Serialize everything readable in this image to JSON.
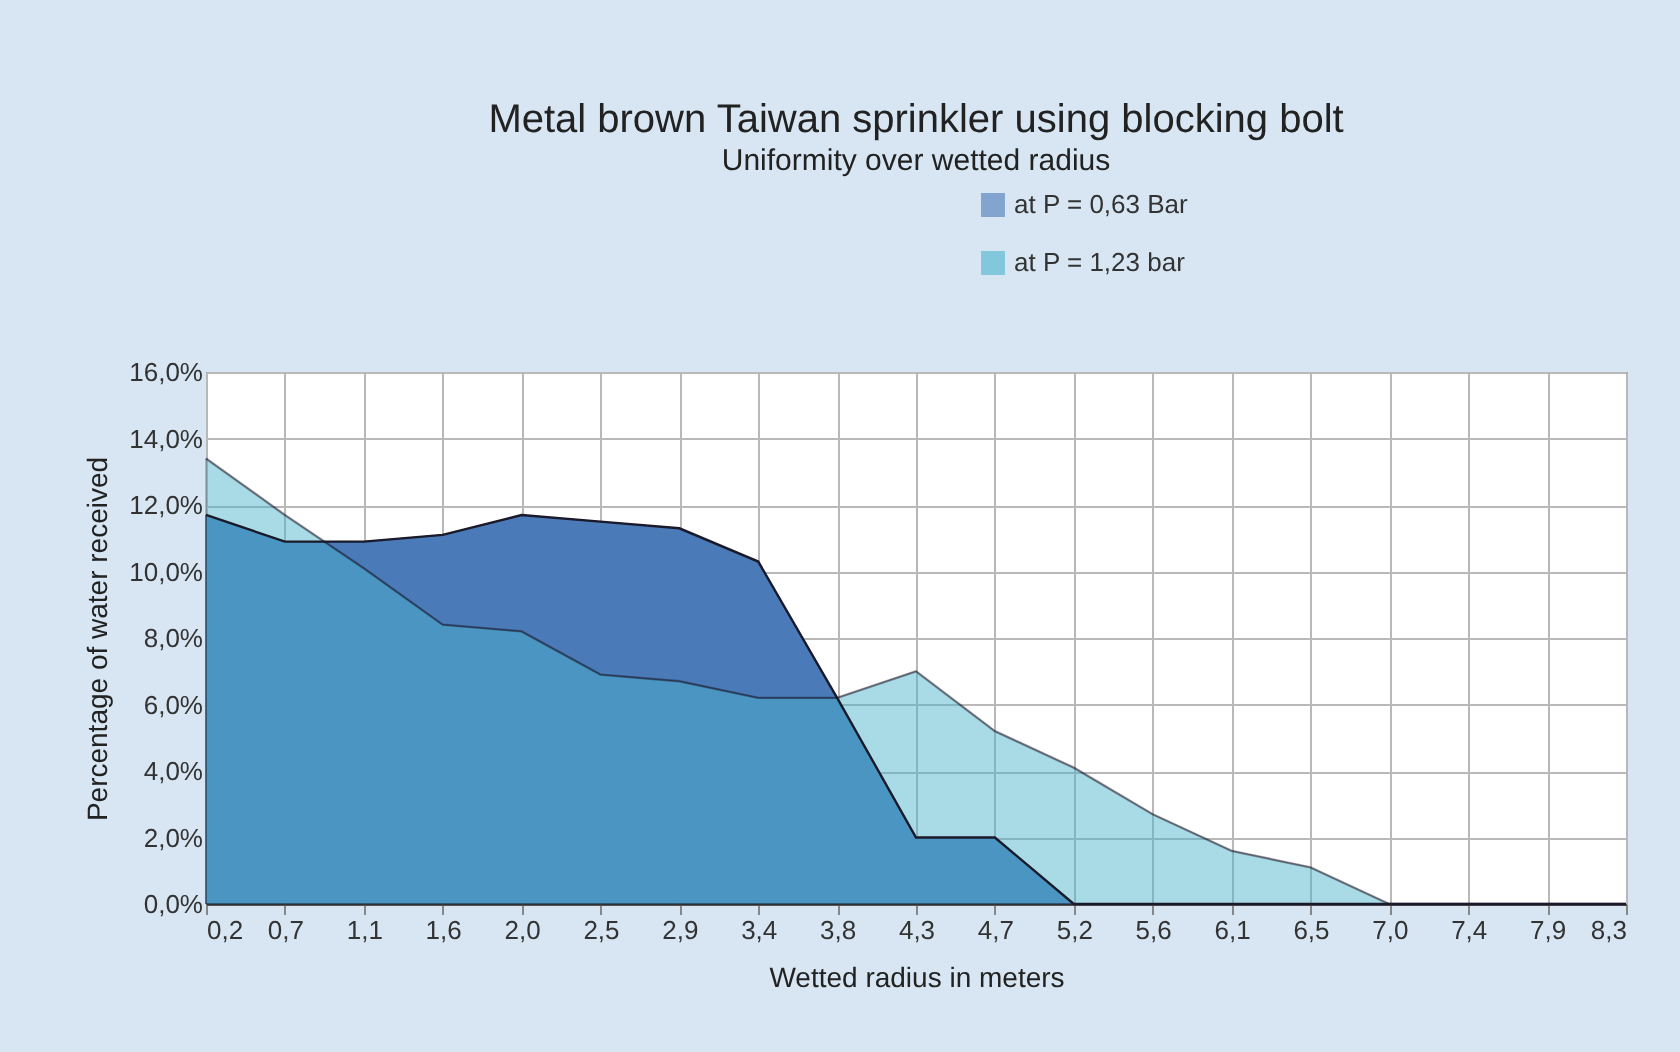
{
  "chart_data": {
    "type": "area",
    "title": "Metal brown Taiwan sprinkler using blocking bolt",
    "subtitle": "Uniformity over wetted radius",
    "xlabel": "Wetted radius in meters",
    "ylabel": "Percentage of water received",
    "categories": [
      "0,2",
      "0,7",
      "1,1",
      "1,6",
      "2,0",
      "2,5",
      "2,9",
      "3,4",
      "3,8",
      "4,3",
      "4,7",
      "5,2",
      "5,6",
      "6,1",
      "6,5",
      "7,0",
      "7,4",
      "7,9",
      "8,3"
    ],
    "series": [
      {
        "name": "at P = 0,63 Bar",
        "color": "#4a7ab8",
        "values": [
          11.7,
          10.9,
          10.9,
          11.1,
          11.7,
          11.5,
          11.3,
          10.3,
          6.2,
          2.0,
          2.0,
          0,
          0,
          0,
          0,
          0,
          0,
          0,
          0
        ]
      },
      {
        "name": "at P = 1,23 bar",
        "color": "#4ab4cd",
        "values": [
          13.4,
          11.7,
          10.1,
          8.4,
          8.2,
          6.9,
          6.7,
          6.2,
          6.2,
          7.0,
          5.2,
          4.1,
          2.7,
          1.6,
          1.1,
          0,
          0,
          0,
          0
        ]
      }
    ],
    "ylim": [
      0,
      16
    ],
    "yticks": [
      {
        "value": 0,
        "label": "0,0%"
      },
      {
        "value": 2,
        "label": "2,0%"
      },
      {
        "value": 4,
        "label": "4,0%"
      },
      {
        "value": 6,
        "label": "6,0%"
      },
      {
        "value": 8,
        "label": "8,0%"
      },
      {
        "value": 10,
        "label": "10,0%"
      },
      {
        "value": 12,
        "label": "12,0%"
      },
      {
        "value": 14,
        "label": "14,0%"
      },
      {
        "value": 16,
        "label": "16,0%"
      }
    ],
    "grid": true,
    "legend": "top right"
  }
}
